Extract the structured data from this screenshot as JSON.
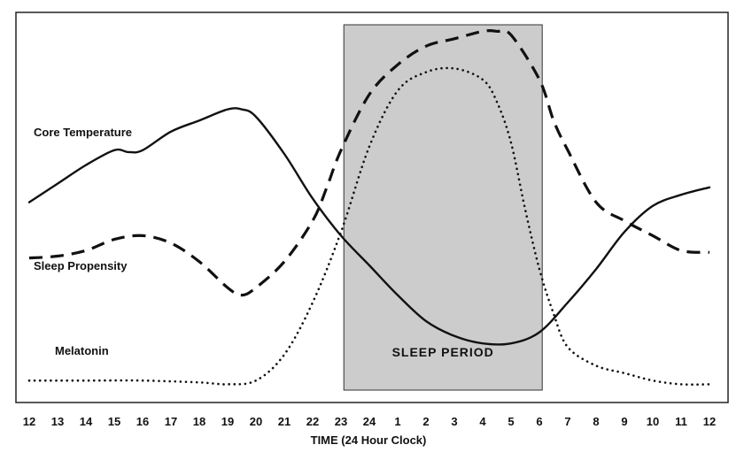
{
  "chart_data": {
    "type": "line",
    "xlabel": "TIME  (24 Hour Clock)",
    "ylabel": "",
    "title": "",
    "x": [
      12,
      13,
      14,
      15,
      16,
      17,
      18,
      19,
      20,
      21,
      22,
      23,
      24,
      25,
      26,
      27,
      28,
      29,
      30,
      31,
      32,
      33,
      34,
      35,
      36
    ],
    "tick_labels": [
      "12",
      "13",
      "14",
      "15",
      "16",
      "17",
      "18",
      "19",
      "20",
      "21",
      "22",
      "23",
      "24",
      "1",
      "2",
      "3",
      "4",
      "5",
      "6",
      "7",
      "8",
      "9",
      "10",
      "11",
      "12"
    ],
    "ylim": [
      0,
      100
    ],
    "grid": false,
    "y_ticks_shown": false,
    "shaded_region": {
      "label": "SLEEP PERIOD",
      "x_start": 23.1,
      "x_end": 30.1,
      "color": "#cccccc"
    },
    "series": [
      {
        "name": "Core Temperature",
        "style": "solid",
        "x": [
          12,
          13,
          14,
          15,
          15.5,
          16,
          17,
          18,
          19,
          19.5,
          20,
          21,
          22,
          23,
          24,
          25,
          26,
          27,
          28,
          29,
          30,
          31,
          32,
          33,
          34,
          35,
          36
        ],
        "y": [
          52,
          57,
          62,
          66,
          65.5,
          66,
          71,
          74,
          77,
          77,
          75,
          65,
          53,
          43,
          35,
          27,
          20,
          16,
          14,
          14,
          17,
          25,
          34,
          44,
          51,
          54,
          56
        ]
      },
      {
        "name": "Sleep Propensity",
        "style": "dashed",
        "x": [
          12,
          13,
          14,
          15,
          16,
          17,
          18,
          19,
          19.5,
          20,
          21,
          22,
          22.5,
          23,
          24,
          25,
          26,
          27,
          28,
          28.5,
          29,
          30,
          30.5,
          31,
          32,
          33,
          34,
          35,
          36
        ],
        "y": [
          37,
          37.5,
          39,
          42,
          43,
          41,
          36,
          29,
          27,
          29,
          36,
          47,
          56,
          66,
          81,
          89,
          94,
          96,
          98,
          98,
          97,
          85,
          74,
          66,
          52,
          47,
          43,
          39,
          38.5
        ]
      },
      {
        "name": "Melatonin",
        "style": "dotted",
        "x": [
          12,
          14,
          16,
          18,
          19,
          20,
          21,
          22,
          23,
          24,
          25,
          26,
          27,
          28,
          28.5,
          29,
          29.5,
          30,
          30.5,
          31,
          32,
          33,
          34,
          35,
          36
        ],
        "y": [
          4,
          4,
          4,
          3.5,
          3,
          4,
          11,
          25,
          44,
          67,
          82,
          87,
          88,
          85,
          79,
          68,
          50,
          34,
          22,
          13,
          8,
          6,
          4,
          3,
          3
        ]
      }
    ]
  }
}
